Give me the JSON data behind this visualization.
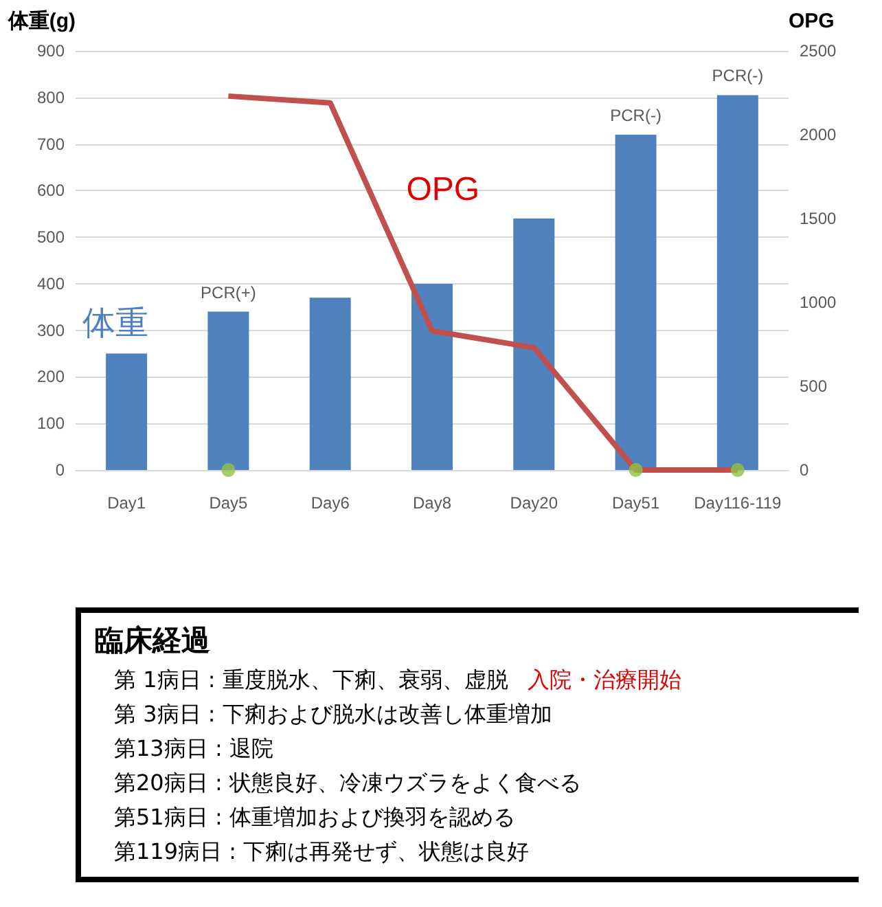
{
  "chart_data": [
    {
      "type": "bar",
      "ylabel": "体重(g)",
      "y2label": "OPG",
      "categories": [
        "Day1",
        "Day5",
        "Day6",
        "Day8",
        "Day20",
        "Day51",
        "Day116-119"
      ],
      "series": [
        {
          "name": "体重",
          "color": "#4f81bd",
          "values": [
            250,
            340,
            370,
            400,
            540,
            720,
            805
          ]
        },
        {
          "name": "OPG",
          "type": "line",
          "axis": "y2",
          "color": "#c0504d",
          "marker": "none",
          "values": [
            null,
            2230,
            2190,
            830,
            730,
            0,
            0
          ]
        },
        {
          "type": "scatter",
          "color": "#92c047",
          "marker": "circle",
          "values": [
            null,
            0,
            null,
            null,
            null,
            0,
            0
          ]
        }
      ],
      "ylim": [
        0,
        900
      ],
      "yticks": [
        0,
        100,
        200,
        300,
        400,
        500,
        600,
        700,
        800,
        900
      ],
      "y2lim": [
        0,
        2500
      ],
      "y2ticks": [
        0,
        500,
        1000,
        1500,
        2000,
        2500
      ],
      "grid": "y",
      "legend": false,
      "annotations": [
        {
          "text": "PCR(+)",
          "x": "Day5",
          "y": 340
        },
        {
          "text": "PCR(-)",
          "x": "Day51",
          "y": 720
        },
        {
          "text": "PCR(-)",
          "x": "Day116-119",
          "y": 805
        }
      ]
    },
    {
      "type": "other",
      "title": "臨床経過",
      "annotations": [
        "第 1病日 : 重度脱水、下痢、衰弱、虚脱",
        "入院・治療開始",
        "第 3病日 : 下痢および脱水は改善し体重増加",
        "第13病日 : 退院",
        "第20病日 : 状態良好、冷凍ウズラをよく食べる",
        "第51病日 : 体重増加および換羽を認める",
        "第119病日 : 下痢は再発せず、状態は良好"
      ]
    }
  ]
}
